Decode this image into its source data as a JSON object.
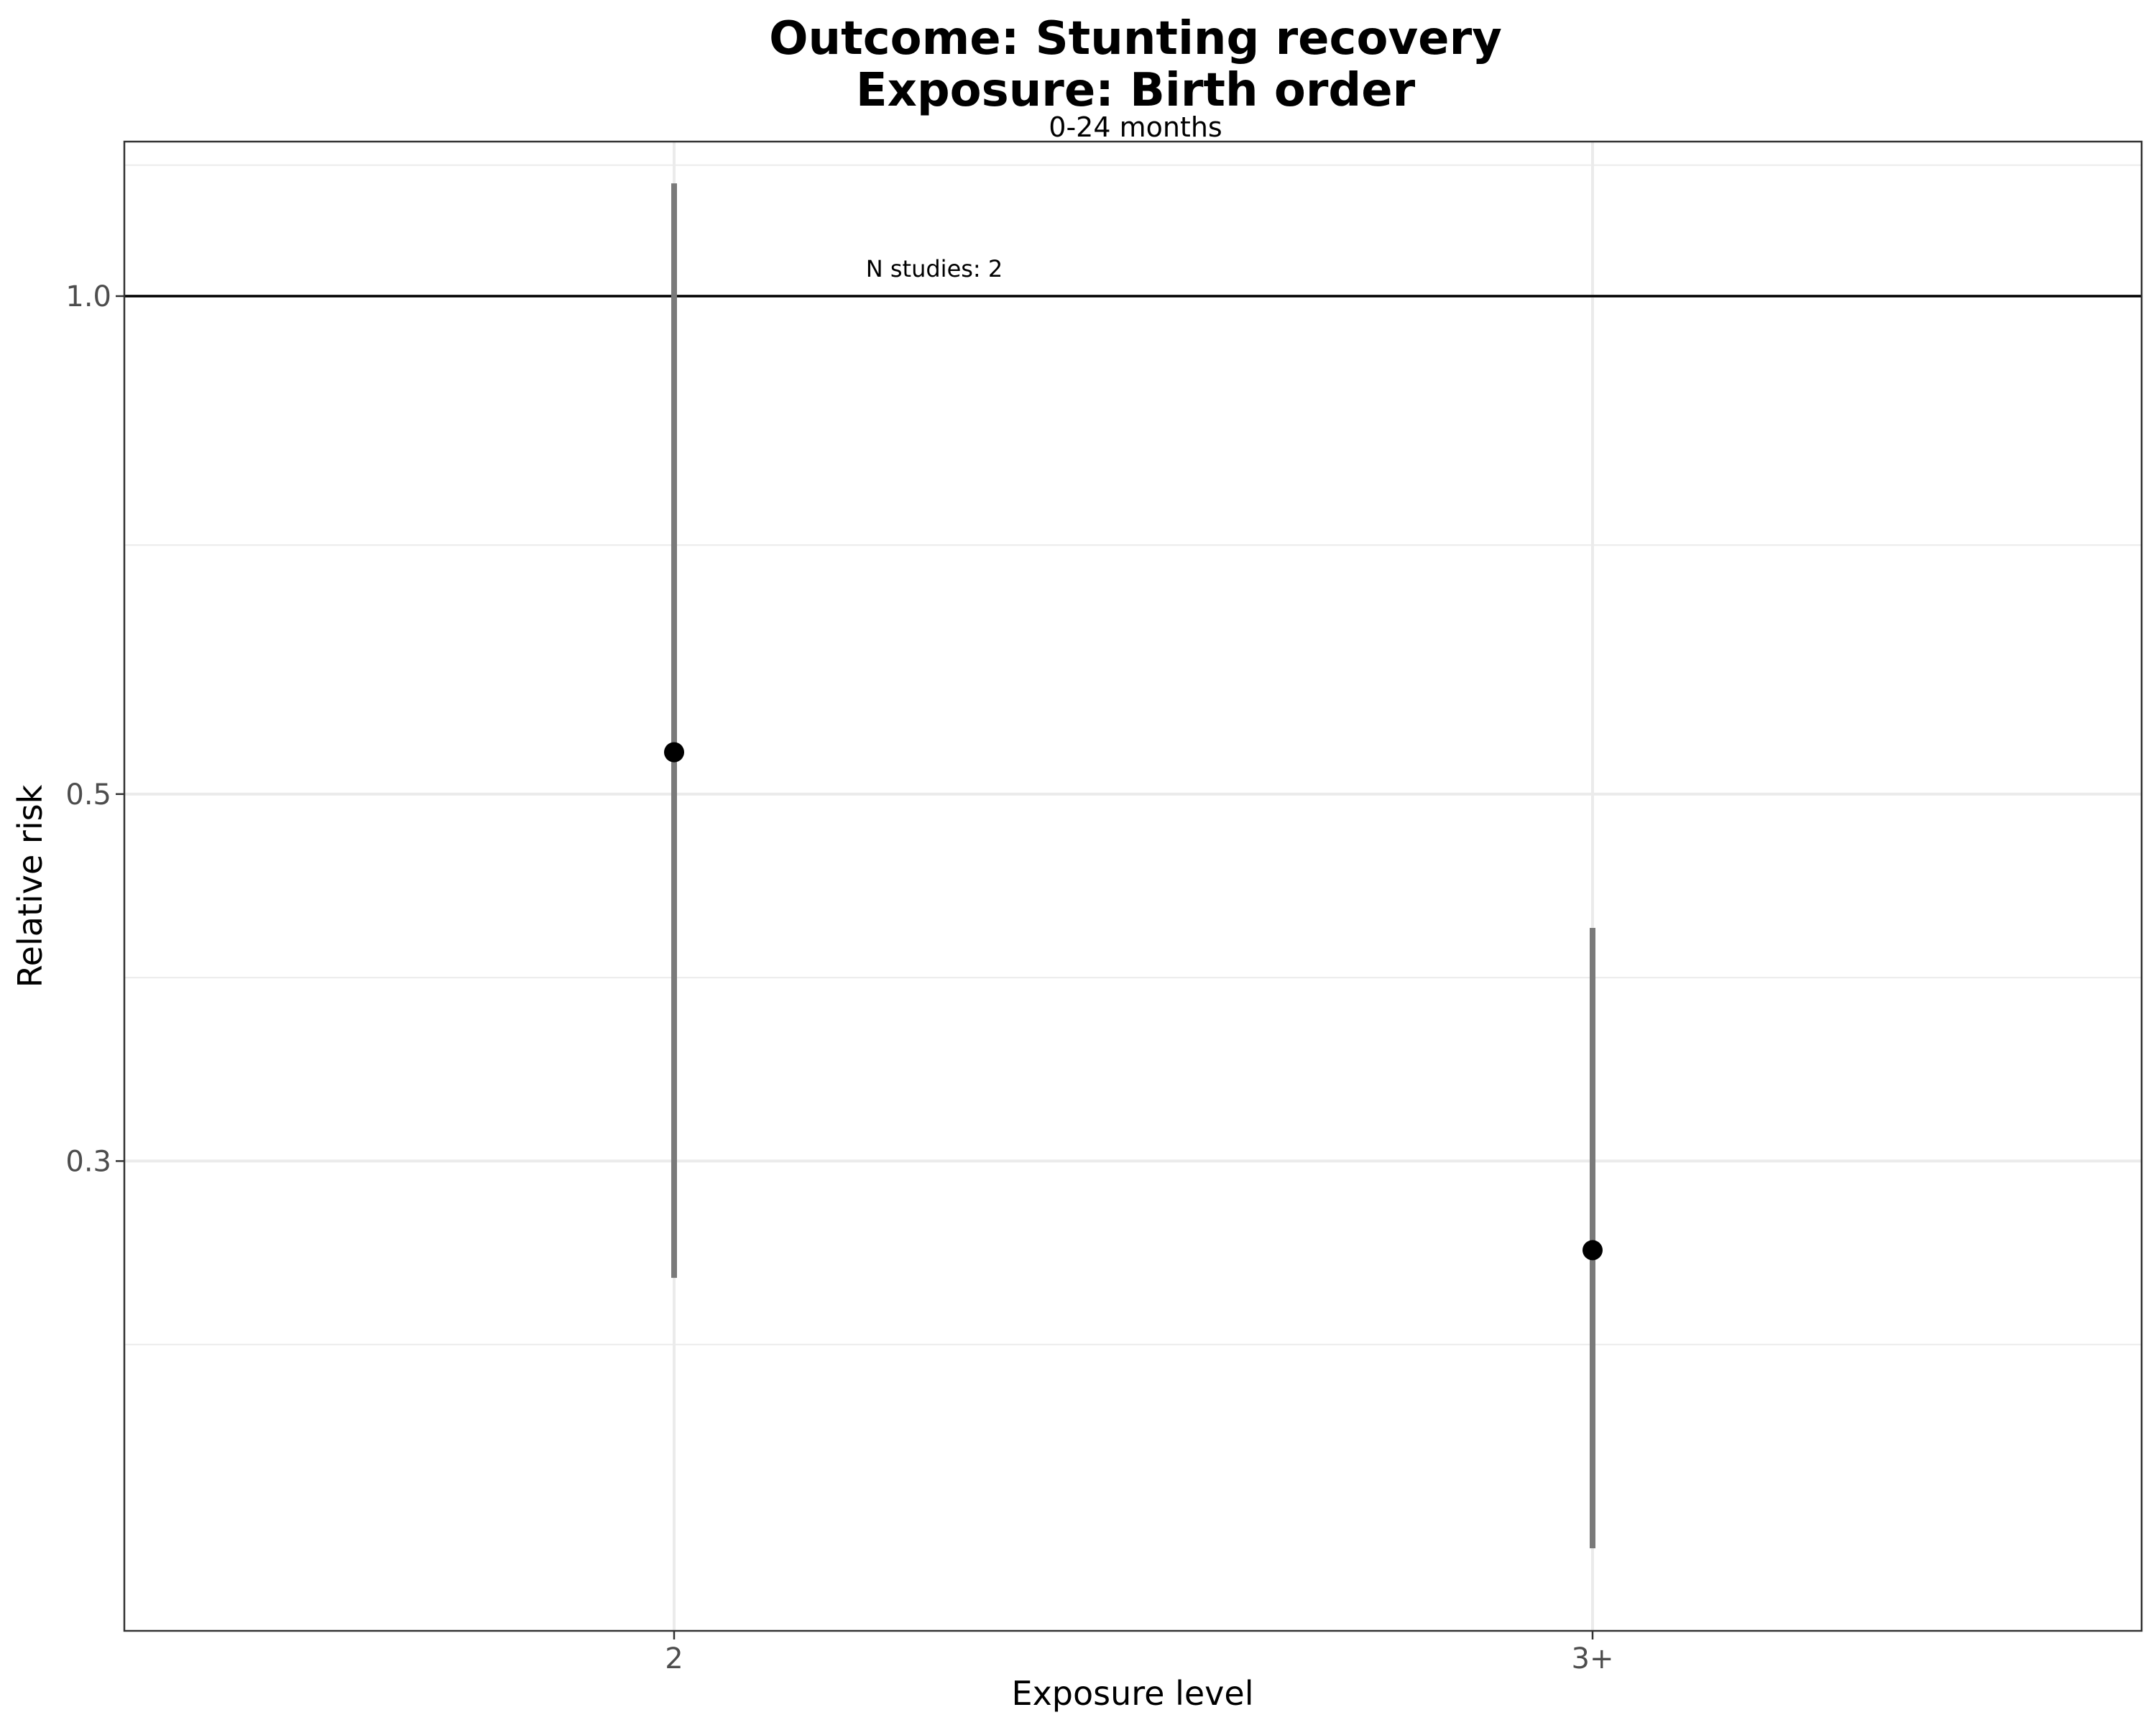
{
  "chart_data": {
    "type": "scatter",
    "title": "Outcome: Stunting recovery",
    "title_line2": "Exposure: Birth order",
    "subtitle": "0-24 months",
    "xlabel": "Exposure level",
    "ylabel": "Relative risk",
    "y_scale": "log",
    "categories": [
      "2",
      "3+"
    ],
    "series": [
      {
        "estimates": [
          0.53,
          0.265
        ],
        "ci_lower": [
          0.255,
          0.175
        ],
        "ci_upper": [
          1.17,
          0.415
        ]
      }
    ],
    "y_ticks": [
      0.3,
      0.5,
      1.0
    ],
    "y_tick_labels": [
      "0.3",
      "0.5",
      "1.0"
    ],
    "ylim": [
      0.156,
      1.24
    ],
    "reference_line": 1.0,
    "grid": true,
    "annotation": "N studies: 2",
    "colors": {
      "point": "#000000",
      "ci": "#7a7a7a",
      "reference": "#000000",
      "grid": "#ebebeb",
      "panel_border": "#333333"
    }
  }
}
